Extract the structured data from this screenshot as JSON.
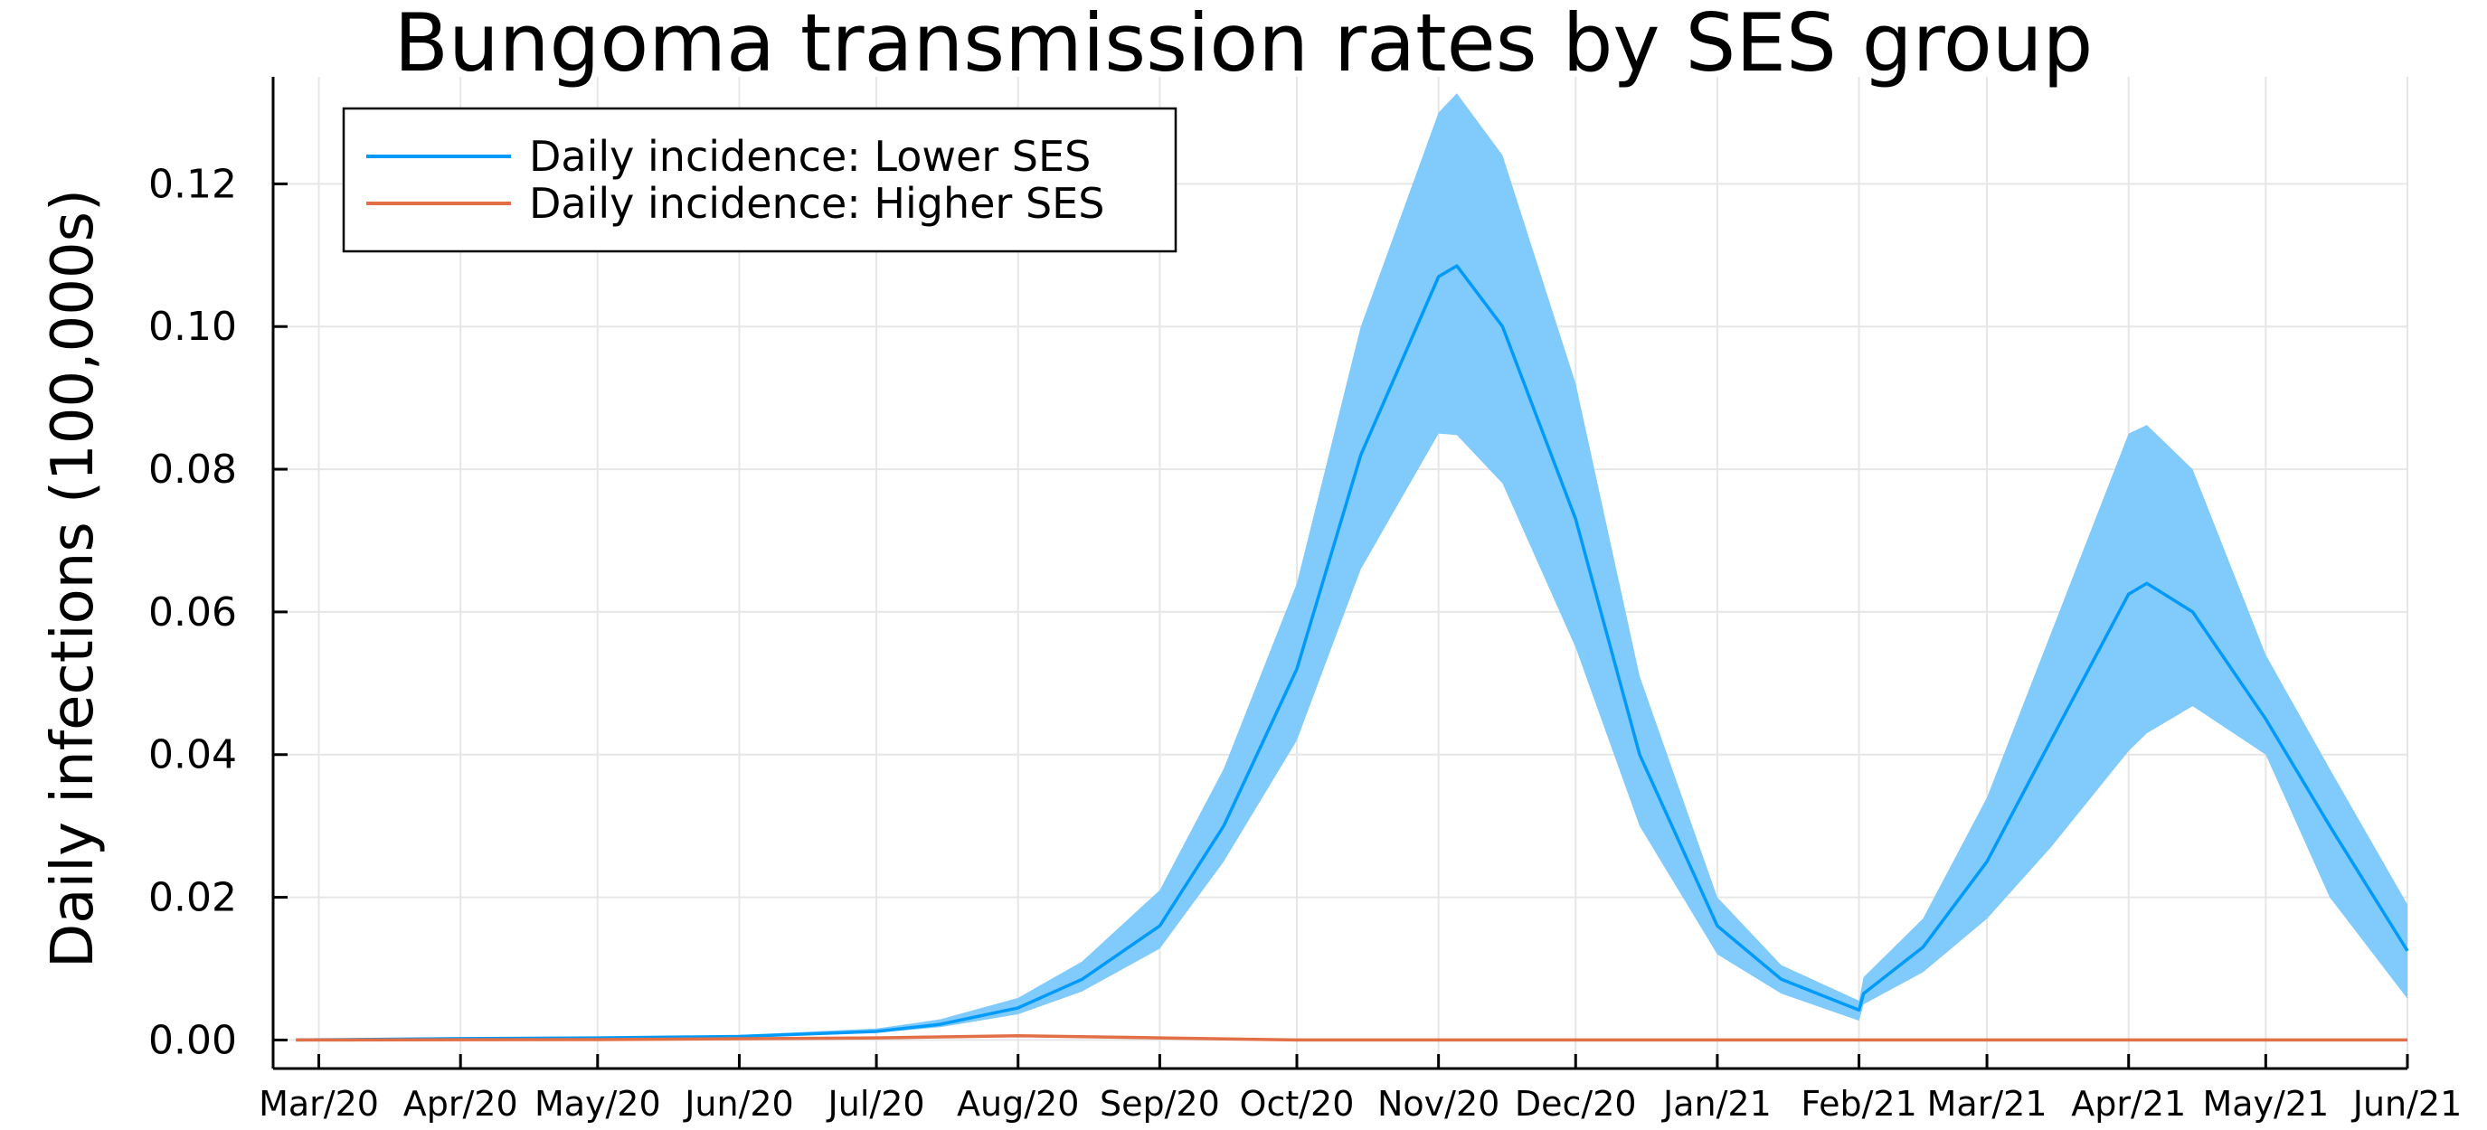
{
  "chart_data": {
    "type": "line",
    "title": "Bungoma transmission rates by SES group",
    "ylabel": "Daily infections (100,000s)",
    "xlabel": "",
    "x_axis_type": "date",
    "xlim": [
      "2020-02-20",
      "2021-06-01"
    ],
    "ylim": [
      -0.004,
      0.135
    ],
    "yticks": [
      0.0,
      0.02,
      0.04,
      0.06,
      0.08,
      0.1,
      0.12
    ],
    "ytick_labels": [
      "0.00",
      "0.02",
      "0.04",
      "0.06",
      "0.08",
      "0.10",
      "0.12"
    ],
    "xticks": [
      "2020-03-01",
      "2020-04-01",
      "2020-05-01",
      "2020-06-01",
      "2020-07-01",
      "2020-08-01",
      "2020-09-01",
      "2020-10-01",
      "2020-11-01",
      "2020-12-01",
      "2021-01-01",
      "2021-02-01",
      "2021-03-01",
      "2021-04-01",
      "2021-05-01",
      "2021-06-01"
    ],
    "xtick_labels": [
      "Mar/20",
      "Apr/20",
      "May/20",
      "Jun/20",
      "Jul/20",
      "Aug/20",
      "Sep/20",
      "Oct/20",
      "Nov/20",
      "Dec/20",
      "Jan/21",
      "Feb/21",
      "Mar/21",
      "Apr/21",
      "May/21",
      "Jun/21"
    ],
    "grid": true,
    "legend_position": "top-left",
    "colors": {
      "lower": "#009AFA",
      "lower_band": "#80CAFC",
      "higher": "#E26F46"
    },
    "series": [
      {
        "name": "Daily incidence: Lower SES",
        "x": [
          "2020-02-25",
          "2020-04-01",
          "2020-05-01",
          "2020-06-01",
          "2020-07-01",
          "2020-07-15",
          "2020-08-01",
          "2020-08-15",
          "2020-09-01",
          "2020-09-15",
          "2020-10-01",
          "2020-10-15",
          "2020-11-01",
          "2020-11-05",
          "2020-11-15",
          "2020-12-01",
          "2020-12-15",
          "2021-01-01",
          "2021-01-15",
          "2021-02-01",
          "2021-02-02",
          "2021-02-15",
          "2021-03-01",
          "2021-03-15",
          "2021-04-01",
          "2021-04-05",
          "2021-04-15",
          "2021-05-01",
          "2021-05-15",
          "2021-06-01"
        ],
        "y": [
          0.0,
          0.0002,
          0.0003,
          0.0005,
          0.0012,
          0.0022,
          0.0045,
          0.0085,
          0.016,
          0.03,
          0.052,
          0.082,
          0.107,
          0.1085,
          0.1,
          0.073,
          0.04,
          0.016,
          0.0085,
          0.0042,
          0.0065,
          0.013,
          0.025,
          0.042,
          0.0625,
          0.064,
          0.06,
          0.045,
          0.03,
          0.0125
        ],
        "lower_bound": [
          0.0,
          0.0002,
          0.0002,
          0.0004,
          0.001,
          0.0018,
          0.0036,
          0.0068,
          0.0128,
          0.025,
          0.042,
          0.066,
          0.085,
          0.0848,
          0.078,
          0.055,
          0.03,
          0.012,
          0.0065,
          0.0027,
          0.005,
          0.0095,
          0.017,
          0.027,
          0.0405,
          0.043,
          0.0468,
          0.04,
          0.02,
          0.0058
        ],
        "upper_bound": [
          0.0,
          0.0002,
          0.0004,
          0.0007,
          0.0016,
          0.0029,
          0.0059,
          0.011,
          0.021,
          0.038,
          0.064,
          0.1,
          0.13,
          0.1327,
          0.124,
          0.092,
          0.051,
          0.02,
          0.0105,
          0.0055,
          0.0088,
          0.017,
          0.034,
          0.057,
          0.085,
          0.0862,
          0.08,
          0.054,
          0.038,
          0.019
        ]
      },
      {
        "name": "Daily incidence: Higher SES",
        "x": [
          "2020-02-25",
          "2020-05-01",
          "2020-07-01",
          "2020-08-01",
          "2020-09-01",
          "2020-10-01",
          "2021-06-01"
        ],
        "y": [
          0.0,
          5e-05,
          0.0003,
          0.0006,
          0.0003,
          0.0,
          0.0
        ]
      }
    ]
  }
}
